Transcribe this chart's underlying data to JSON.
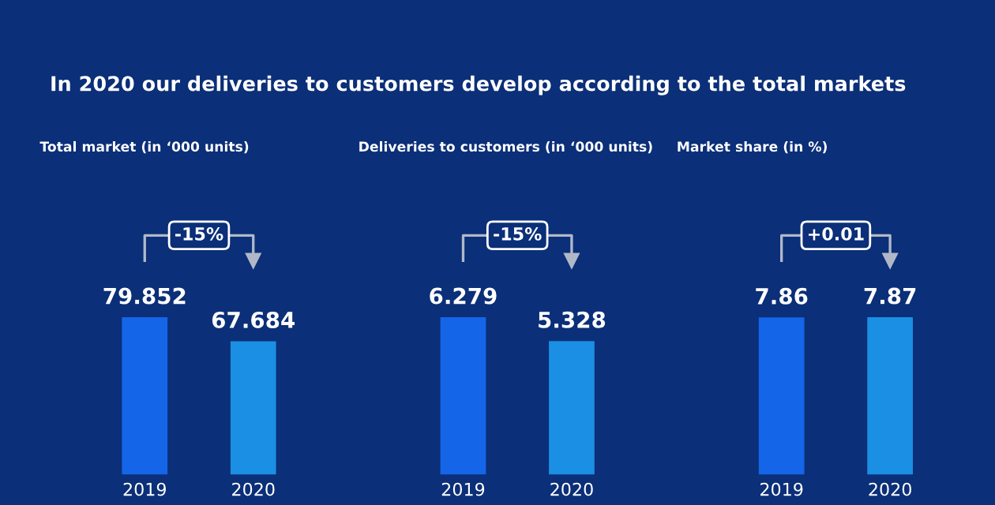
{
  "chart_data": [
    {
      "type": "bar",
      "title": "Total market (in ‘000 units)",
      "categories": [
        "2019",
        "2020"
      ],
      "values": [
        79.852,
        67.684
      ],
      "colors": [
        "#1565e8",
        "#1a8fe3"
      ],
      "data_labels": true,
      "annotations": [
        "In 2020 our deliveries to customers develop according to the total markets",
        "-15%"
      ]
    },
    {
      "type": "bar",
      "title": "Deliveries to customers (in ‘000 units)",
      "categories": [
        "2019",
        "2020"
      ],
      "values": [
        6.279,
        5.328
      ],
      "colors": [
        "#1565e8",
        "#1a8fe3"
      ],
      "data_labels": true,
      "annotations": [
        "-15%"
      ]
    },
    {
      "type": "bar",
      "title": "Market share (in %)",
      "categories": [
        "2019",
        "2020"
      ],
      "values": [
        7.86,
        7.87
      ],
      "colors": [
        "#1565e8",
        "#1a8fe3"
      ],
      "data_labels": true,
      "annotations": [
        "+0.01"
      ]
    }
  ]
}
